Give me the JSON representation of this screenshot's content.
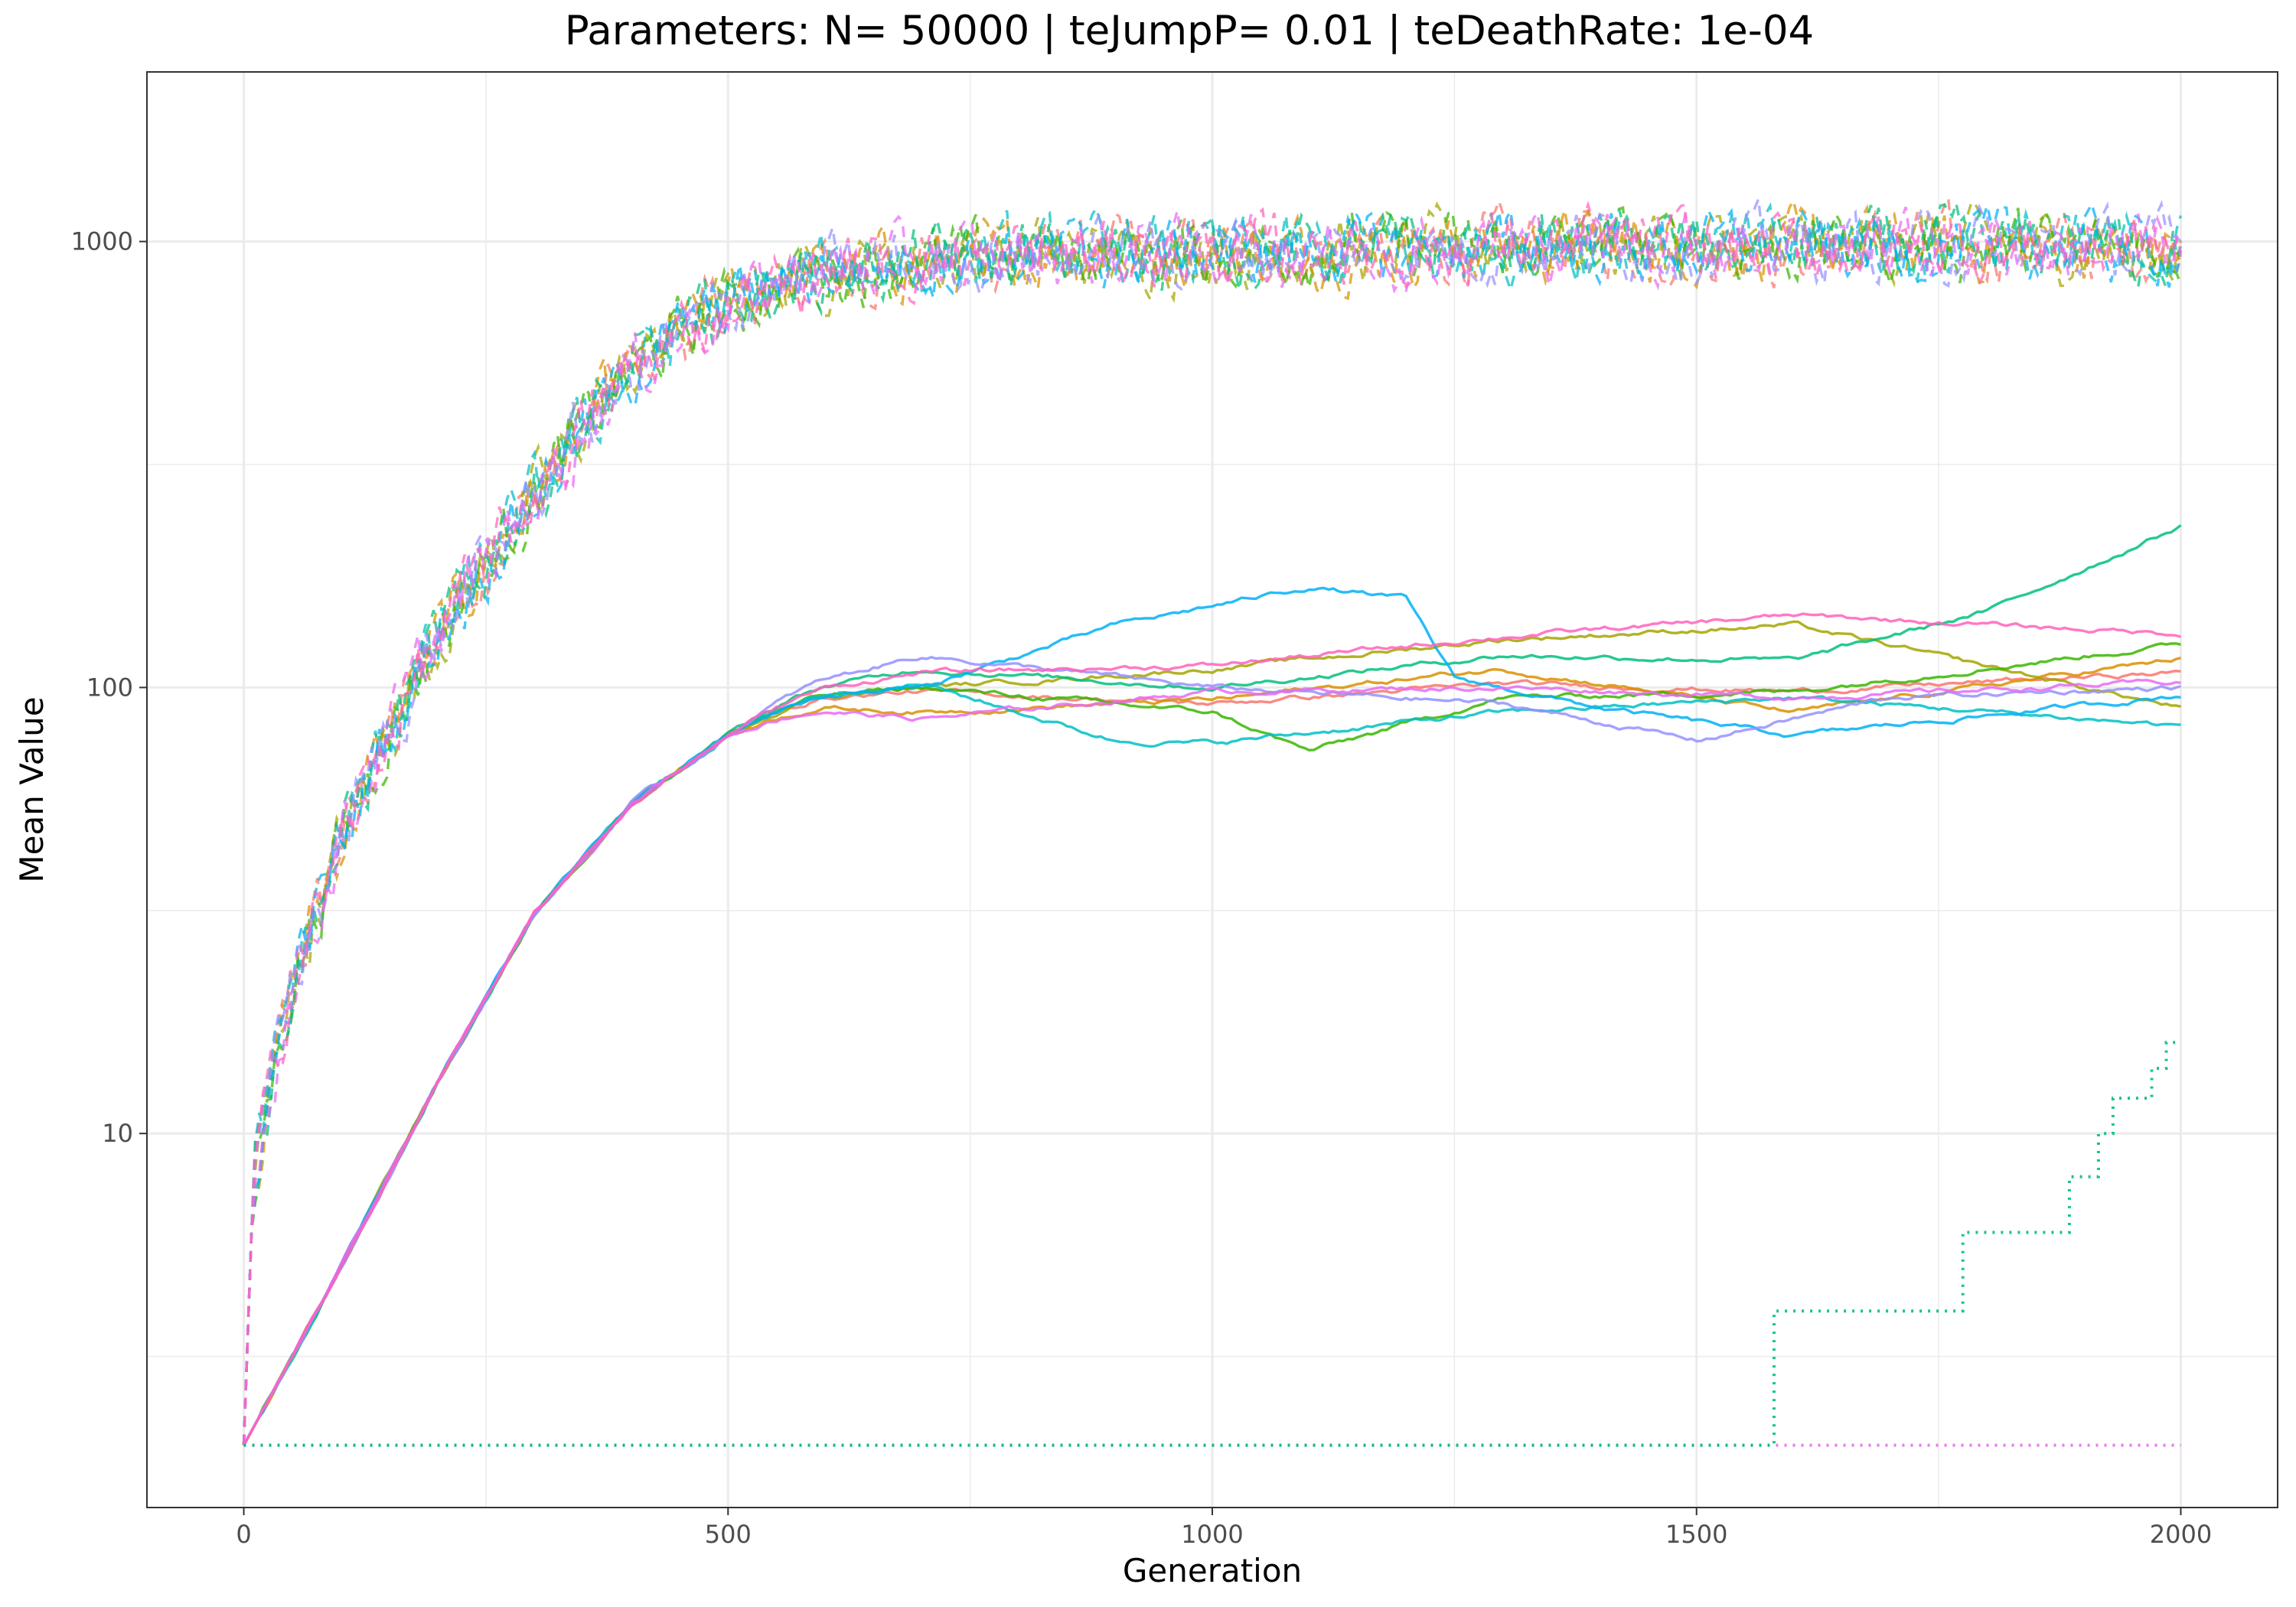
{
  "chart_data": {
    "type": "line",
    "title": "Parameters:   N= 50000  |  teJumpP= 0.01  |  teDeathRate: 1e-04",
    "xlabel": "Generation",
    "ylabel": "Mean Value",
    "x_scale": "linear",
    "y_scale": "log10",
    "xlim": [
      -100,
      2100
    ],
    "ylim": [
      1.45,
      2400
    ],
    "x_ticks": [
      0,
      500,
      1000,
      1500,
      2000
    ],
    "x_tick_labels": [
      "0",
      "500",
      "1000",
      "1500",
      "2000"
    ],
    "y_ticks": [
      10,
      100,
      1000
    ],
    "y_tick_labels": [
      "10",
      "100",
      "1000"
    ],
    "grid": true,
    "legend": "none",
    "colors": [
      "#F8766D",
      "#D89000",
      "#A3A500",
      "#39B600",
      "#00BF7D",
      "#00BFC4",
      "#00B0F6",
      "#9590FF",
      "#E76BF3",
      "#FF62BC"
    ],
    "series_groups": [
      {
        "group": "dashed",
        "line_style": "dashed",
        "points": [
          [
            0,
            2
          ],
          [
            10,
            8
          ],
          [
            50,
            22
          ],
          [
            100,
            45
          ],
          [
            150,
            80
          ],
          [
            200,
            130
          ],
          [
            250,
            190
          ],
          [
            300,
            270
          ],
          [
            350,
            380
          ],
          [
            400,
            510
          ],
          [
            450,
            620
          ],
          [
            500,
            720
          ],
          [
            550,
            800
          ],
          [
            600,
            860
          ],
          [
            700,
            900
          ],
          [
            800,
            930
          ],
          [
            1000,
            950
          ],
          [
            1200,
            960
          ],
          [
            1400,
            990
          ],
          [
            1600,
            970
          ],
          [
            1800,
            980
          ],
          [
            2000,
            960
          ]
        ],
        "noise_amplitude": 0.28
      },
      {
        "group": "solid",
        "line_style": "solid",
        "series": [
          {
            "color": "#F8766D",
            "end_points": [
              [
                700,
                98
              ],
              [
                1000,
                92
              ],
              [
                1300,
                102
              ],
              [
                1600,
                98
              ],
              [
                2000,
                108
              ]
            ]
          },
          {
            "color": "#D89000",
            "end_points": [
              [
                700,
                88
              ],
              [
                1000,
                94
              ],
              [
                1300,
                110
              ],
              [
                1600,
                88
              ],
              [
                2000,
                116
              ]
            ]
          },
          {
            "color": "#A3A500",
            "end_points": [
              [
                700,
                100
              ],
              [
                1000,
                110
              ],
              [
                1300,
                128
              ],
              [
                1600,
                138
              ],
              [
                2000,
                90
              ]
            ]
          },
          {
            "color": "#39B600",
            "end_points": [
              [
                700,
                100
              ],
              [
                1000,
                88
              ],
              [
                1100,
                72
              ],
              [
                1300,
                95
              ],
              [
                1600,
                98
              ],
              [
                2000,
                125
              ]
            ]
          },
          {
            "color": "#00BF7D",
            "end_points": [
              [
                700,
                110
              ],
              [
                1000,
                100
              ],
              [
                1300,
                118
              ],
              [
                1600,
                115
              ],
              [
                1800,
                148
              ],
              [
                2000,
                230
              ]
            ]
          },
          {
            "color": "#00BFC4",
            "end_points": [
              [
                700,
                102
              ],
              [
                900,
                76
              ],
              [
                1000,
                75
              ],
              [
                1300,
                88
              ],
              [
                1600,
                95
              ],
              [
                2000,
                82
              ]
            ]
          },
          {
            "color": "#00B0F6",
            "end_points": [
              [
                700,
                100
              ],
              [
                900,
                138
              ],
              [
                1100,
                168
              ],
              [
                1200,
                158
              ],
              [
                1250,
                105
              ],
              [
                1400,
                90
              ],
              [
                1600,
                78
              ],
              [
                2000,
                96
              ]
            ]
          },
          {
            "color": "#9590FF",
            "end_points": [
              [
                700,
                118
              ],
              [
                1000,
                100
              ],
              [
                1300,
                92
              ],
              [
                1500,
                76
              ],
              [
                1700,
                95
              ],
              [
                2000,
                100
              ]
            ]
          },
          {
            "color": "#E76BF3",
            "end_points": [
              [
                700,
                85
              ],
              [
                1000,
                98
              ],
              [
                1300,
                100
              ],
              [
                1600,
                95
              ],
              [
                2000,
                103
              ]
            ]
          },
          {
            "color": "#FF62BC",
            "end_points": [
              [
                700,
                108
              ],
              [
                1000,
                112
              ],
              [
                1300,
                130
              ],
              [
                1600,
                145
              ],
              [
                2000,
                132
              ]
            ]
          }
        ]
      },
      {
        "group": "dotted",
        "line_style": "dotted",
        "series": [
          {
            "color": "#E76BF3",
            "points": [
              [
                0,
                2
              ],
              [
                2000,
                2
              ]
            ]
          },
          {
            "color": "#00BF7D",
            "points": [
              [
                0,
                2
              ],
              [
                1580,
                2
              ],
              [
                1580,
                4
              ],
              [
                1775,
                4
              ],
              [
                1775,
                6
              ],
              [
                1885,
                6
              ],
              [
                1885,
                8
              ],
              [
                1915,
                8
              ],
              [
                1915,
                10
              ],
              [
                1930,
                10
              ],
              [
                1930,
                12
              ],
              [
                1970,
                12
              ],
              [
                1970,
                14
              ],
              [
                1985,
                14
              ],
              [
                1985,
                16
              ],
              [
                1995,
                16
              ]
            ]
          }
        ]
      }
    ]
  }
}
